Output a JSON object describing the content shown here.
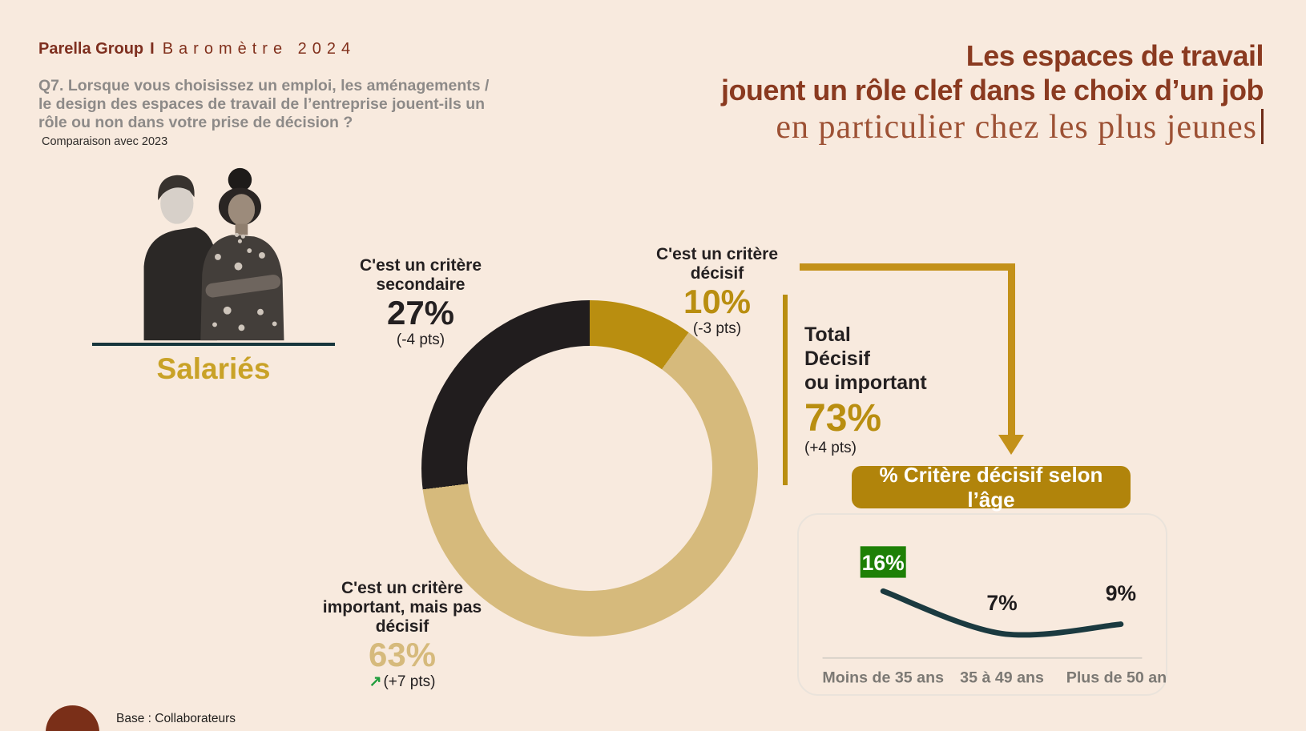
{
  "slide": {
    "background": "#F8EADE",
    "accent_gold": "#B98E10",
    "accent_maroon": "#8A3A20"
  },
  "header": {
    "brand": "Parella Group",
    "separator": "I",
    "edition": "Baromètre 2024",
    "question_lines": [
      "Q7. Lorsque vous choisissez un emploi, les aménagements /",
      "le design des espaces de travail de l’entreprise jouent-ils un",
      "rôle ou non dans votre prise de décision ?"
    ],
    "comparison_note": "Comparaison avec 2023"
  },
  "title": {
    "line1": "Les espaces de travail",
    "line2": "jouent un rôle clef dans le choix d’un job",
    "subtitle": "en particulier chez les plus jeunes"
  },
  "audience": {
    "label": "Salariés"
  },
  "total_block": {
    "lines": [
      "Total",
      "Décisif",
      "ou important"
    ],
    "value": "73%",
    "delta": "(+4 pts)"
  },
  "age_button": {
    "label": "% Critère décisif selon l’âge"
  },
  "footer": {
    "base_label": "Base : Collaborateurs"
  },
  "chart_data": [
    {
      "type": "pie",
      "subtype": "donut",
      "start_angle_deg": 0,
      "direction": "clockwise",
      "segments": [
        {
          "label": "C'est un critère décisif",
          "value": 10,
          "display": "10%",
          "delta": "(-3 pts)",
          "color": "#B98E10"
        },
        {
          "label": "C'est un critère important, mais pas décisif",
          "value": 63,
          "display": "63%",
          "delta": "(+7 pts)",
          "delta_icon": "↗",
          "delta_icon_color": "#1F9D3C",
          "color": "#D6BA7C"
        },
        {
          "label": "C'est un critère secondaire",
          "value": 27,
          "display": "27%",
          "delta": "(-4 pts)",
          "color": "#211D1E"
        }
      ]
    },
    {
      "type": "line",
      "title": "% Critère décisif selon l’âge",
      "categories": [
        "Moins de 35 ans",
        "35 à 49 ans",
        "Plus de 50 ans"
      ],
      "values": [
        16,
        7,
        9
      ],
      "labels": [
        "16%",
        "7%",
        "9%"
      ],
      "highlight_index": 0,
      "highlight_color": "#1E8006",
      "highlight_text_color": "#FFFFFF",
      "line_color": "#1B3A40",
      "label_color": "#1F1C1D",
      "category_color": "#7C7974",
      "baseline_color": "#D8D1C9",
      "ylim": [
        0,
        20
      ],
      "grid": false,
      "legend": false
    }
  ]
}
